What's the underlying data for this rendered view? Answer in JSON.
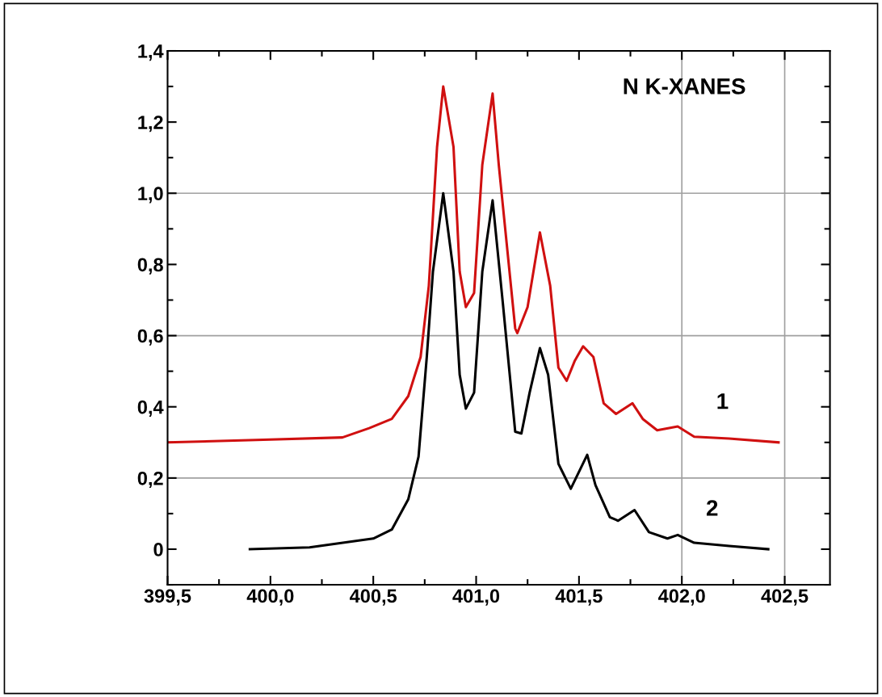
{
  "chart_data": {
    "type": "line",
    "title": "N K-XANES",
    "xlim": [
      399.5,
      402.72
    ],
    "ylim": [
      -0.1,
      1.4
    ],
    "xticks": [
      {
        "value": 399.5,
        "label": "399,5"
      },
      {
        "value": 400.0,
        "label": "400,0"
      },
      {
        "value": 400.5,
        "label": "400,5"
      },
      {
        "value": 401.0,
        "label": "401,0"
      },
      {
        "value": 401.5,
        "label": "401,5"
      },
      {
        "value": 402.0,
        "label": "402,0"
      },
      {
        "value": 402.5,
        "label": "402,5"
      }
    ],
    "yticks": [
      0,
      {
        "value": 0.2,
        "label": "0,2"
      },
      {
        "value": 0.4,
        "label": "0,4"
      },
      {
        "value": 0.6,
        "label": "0,6"
      },
      {
        "value": 0.8,
        "label": "0,8"
      },
      {
        "value": 1.0,
        "label": "1,0"
      },
      {
        "value": 1.2,
        "label": "1,2"
      },
      {
        "value": 1.4,
        "label": "1,4"
      }
    ],
    "grid": false,
    "legend": false,
    "ref_lines": [
      {
        "axis": "y",
        "value": 0.2,
        "color": "#a0a0a0"
      },
      {
        "axis": "y",
        "value": 0.6,
        "color": "#a0a0a0"
      },
      {
        "axis": "y",
        "value": 1.0,
        "color": "#a0a0a0"
      },
      {
        "axis": "x",
        "value": 402.0,
        "color": "#a0a0a0"
      },
      {
        "axis": "x",
        "value": 402.5,
        "color": "#a0a0a0"
      }
    ],
    "series": [
      {
        "name": "1",
        "color": "#d01010",
        "x": [
          399.5,
          399.93,
          400.35,
          400.48,
          400.59,
          400.67,
          400.73,
          400.77,
          400.81,
          400.84,
          400.89,
          400.92,
          400.95,
          400.99,
          401.03,
          401.08,
          401.11,
          401.19,
          401.2,
          401.25,
          401.31,
          401.36,
          401.4,
          401.44,
          401.48,
          401.52,
          401.57,
          401.62,
          401.68,
          401.76,
          401.81,
          401.88,
          401.98,
          402.06,
          402.23,
          402.47
        ],
        "values": [
          0.3,
          0.307,
          0.314,
          0.34,
          0.366,
          0.43,
          0.54,
          0.74,
          1.13,
          1.3,
          1.13,
          0.78,
          0.68,
          0.72,
          1.08,
          1.28,
          1.08,
          0.62,
          0.607,
          0.68,
          0.89,
          0.74,
          0.51,
          0.473,
          0.53,
          0.57,
          0.54,
          0.41,
          0.38,
          0.41,
          0.366,
          0.334,
          0.345,
          0.316,
          0.311,
          0.3
        ]
      },
      {
        "name": "2",
        "color": "#000000",
        "x": [
          399.9,
          400.19,
          400.5,
          400.59,
          400.67,
          400.72,
          400.76,
          400.79,
          400.84,
          400.89,
          400.92,
          400.95,
          400.99,
          401.03,
          401.08,
          401.13,
          401.19,
          401.22,
          401.26,
          401.31,
          401.35,
          401.4,
          401.46,
          401.54,
          401.58,
          401.65,
          401.69,
          401.77,
          401.84,
          401.93,
          401.98,
          402.06,
          402.23,
          402.42
        ],
        "values": [
          0.0,
          0.005,
          0.03,
          0.055,
          0.14,
          0.26,
          0.54,
          0.78,
          1.0,
          0.78,
          0.49,
          0.395,
          0.44,
          0.78,
          0.98,
          0.69,
          0.33,
          0.325,
          0.44,
          0.565,
          0.49,
          0.24,
          0.17,
          0.265,
          0.18,
          0.09,
          0.08,
          0.11,
          0.048,
          0.03,
          0.04,
          0.018,
          0.009,
          0.0
        ]
      }
    ]
  }
}
